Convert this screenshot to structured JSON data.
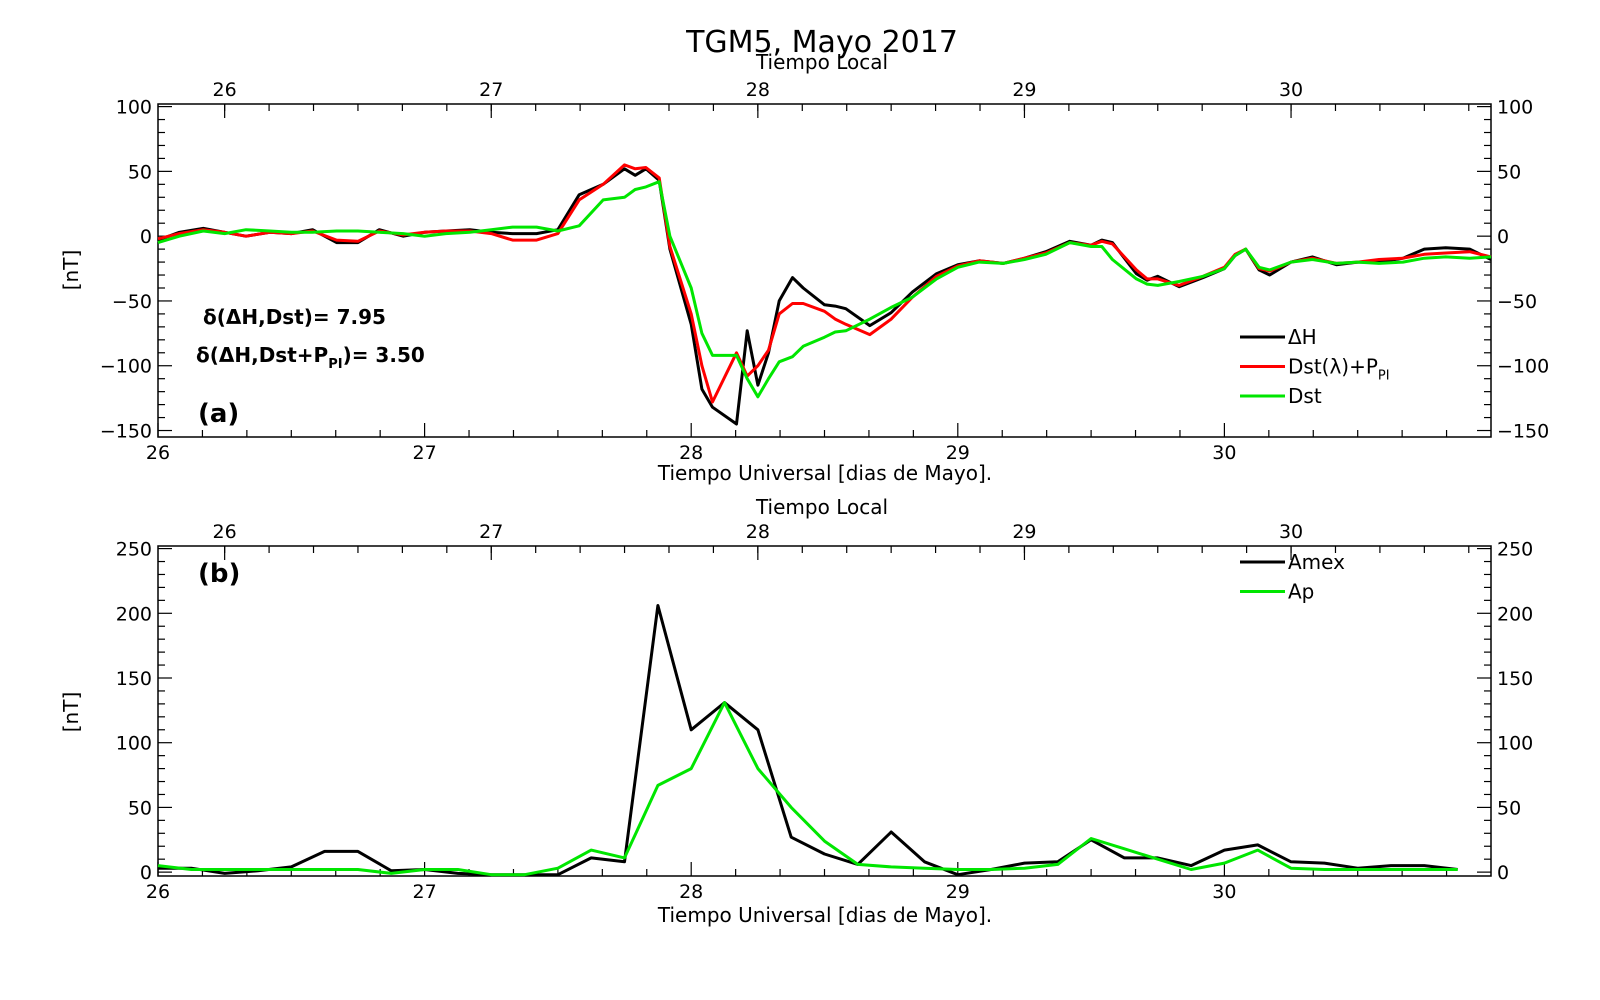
{
  "colors": {
    "dH": "#000000",
    "dst_ppi": "#ff0000",
    "dst": "#00e600",
    "amex": "#000000",
    "ap": "#00e600"
  },
  "header": {
    "title": "TGM5, Mayo 2017"
  },
  "stats": {
    "s1": "δ(ΔH,Dst)=  7.95",
    "s2_pre": "δ(ΔH,Dst+P",
    "s2_sub": "PI",
    "s2_post": ")=  3.50"
  },
  "chart_data": [
    {
      "type": "line",
      "panel_label": "(a)",
      "top_xlabel": "Tiempo Local",
      "xlabel": "Tiempo Universal [dias de Mayo].",
      "ylabel": "[nT]",
      "xlim": [
        26,
        31
      ],
      "ylim": [
        -155,
        102
      ],
      "top_tick_offset": -0.25,
      "x_ticks": [
        26,
        27,
        28,
        29,
        30
      ],
      "x_ticklabels": [
        "26",
        "27",
        "28",
        "29",
        "30"
      ],
      "top_ticklabels": [
        "26",
        "27",
        "28",
        "29",
        "30"
      ],
      "y_ticks": [
        -150,
        -100,
        -50,
        0,
        50,
        100
      ],
      "y_ticklabels": [
        "−150",
        "−100",
        "−50",
        "0",
        "50",
        "100"
      ],
      "right_ticklabels": [
        "−150",
        "−100",
        "−50",
        "0",
        "50",
        "100"
      ],
      "legend_position": "right",
      "series": [
        {
          "key": "dH",
          "name": "ΔH",
          "color": "#000000",
          "x": [
            26.0,
            26.08,
            26.17,
            26.25,
            26.33,
            26.42,
            26.5,
            26.58,
            26.67,
            26.75,
            26.83,
            26.92,
            27.0,
            27.08,
            27.17,
            27.25,
            27.33,
            27.42,
            27.5,
            27.58,
            27.67,
            27.75,
            27.79,
            27.83,
            27.88,
            27.92,
            28.0,
            28.04,
            28.08,
            28.17,
            28.21,
            28.25,
            28.29,
            28.33,
            28.38,
            28.42,
            28.5,
            28.54,
            28.58,
            28.67,
            28.75,
            28.83,
            28.92,
            29.0,
            29.08,
            29.17,
            29.25,
            29.33,
            29.42,
            29.5,
            29.54,
            29.58,
            29.67,
            29.71,
            29.75,
            29.83,
            29.92,
            30.0,
            30.04,
            30.08,
            30.13,
            30.17,
            30.25,
            30.33,
            30.42,
            30.5,
            30.58,
            30.67,
            30.75,
            30.83,
            30.92,
            31.0
          ],
          "y": [
            -3,
            3,
            6,
            3,
            0,
            3,
            2,
            5,
            -5,
            -5,
            5,
            0,
            3,
            4,
            5,
            3,
            2,
            2,
            5,
            32,
            40,
            52,
            47,
            52,
            43,
            -10,
            -68,
            -118,
            -132,
            -145,
            -73,
            -115,
            -90,
            -50,
            -32,
            -40,
            -53,
            -54,
            -56,
            -69,
            -59,
            -43,
            -29,
            -22,
            -19,
            -21,
            -17,
            -12,
            -4,
            -7,
            -3,
            -5,
            -29,
            -34,
            -31,
            -39,
            -32,
            -25,
            -15,
            -10,
            -26,
            -30,
            -20,
            -16,
            -22,
            -20,
            -20,
            -17,
            -10,
            -9,
            -10,
            -18
          ]
        },
        {
          "key": "dst_ppi",
          "name": "Dst(λ)+P",
          "sub": "PI",
          "color": "#ff0000",
          "x": [
            26.0,
            26.08,
            26.17,
            26.25,
            26.33,
            26.42,
            26.5,
            26.58,
            26.67,
            26.75,
            26.83,
            26.92,
            27.0,
            27.08,
            27.17,
            27.25,
            27.33,
            27.42,
            27.5,
            27.58,
            27.67,
            27.75,
            27.79,
            27.83,
            27.88,
            27.92,
            28.0,
            28.04,
            28.08,
            28.17,
            28.21,
            28.25,
            28.29,
            28.33,
            28.38,
            28.42,
            28.5,
            28.54,
            28.58,
            28.67,
            28.75,
            28.83,
            28.92,
            29.0,
            29.08,
            29.17,
            29.25,
            29.33,
            29.42,
            29.5,
            29.54,
            29.58,
            29.67,
            29.71,
            29.75,
            29.83,
            29.92,
            30.0,
            30.04,
            30.08,
            30.13,
            30.17,
            30.25,
            30.33,
            30.42,
            30.5,
            30.58,
            30.67,
            30.75,
            30.83,
            30.92,
            31.0
          ],
          "y": [
            -2,
            2,
            5,
            3,
            0,
            3,
            2,
            4,
            -3,
            -4,
            4,
            1,
            3,
            4,
            4,
            2,
            -3,
            -3,
            2,
            28,
            40,
            55,
            52,
            53,
            45,
            -8,
            -60,
            -100,
            -128,
            -90,
            -108,
            -100,
            -88,
            -60,
            -52,
            -52,
            -58,
            -64,
            -68,
            -76,
            -64,
            -47,
            -31,
            -23,
            -19,
            -21,
            -17,
            -13,
            -5,
            -7,
            -4,
            -6,
            -26,
            -33,
            -33,
            -38,
            -31,
            -24,
            -14,
            -10,
            -25,
            -27,
            -20,
            -17,
            -21,
            -20,
            -18,
            -17,
            -14,
            -13,
            -12,
            -16
          ]
        },
        {
          "key": "dst",
          "name": "Dst",
          "color": "#00e600",
          "x": [
            26.0,
            26.08,
            26.17,
            26.25,
            26.33,
            26.42,
            26.5,
            26.58,
            26.67,
            26.75,
            26.83,
            26.92,
            27.0,
            27.08,
            27.17,
            27.25,
            27.33,
            27.42,
            27.5,
            27.58,
            27.67,
            27.75,
            27.79,
            27.83,
            27.88,
            27.92,
            28.0,
            28.04,
            28.08,
            28.17,
            28.21,
            28.25,
            28.29,
            28.33,
            28.38,
            28.42,
            28.5,
            28.54,
            28.58,
            28.67,
            28.75,
            28.83,
            28.92,
            29.0,
            29.08,
            29.17,
            29.25,
            29.33,
            29.42,
            29.5,
            29.54,
            29.58,
            29.67,
            29.71,
            29.75,
            29.83,
            29.92,
            30.0,
            30.04,
            30.08,
            30.13,
            30.17,
            30.25,
            30.33,
            30.42,
            30.5,
            30.58,
            30.67,
            30.75,
            30.83,
            30.92,
            31.0
          ],
          "y": [
            -5,
            0,
            4,
            2,
            5,
            4,
            3,
            3,
            4,
            4,
            3,
            2,
            0,
            2,
            3,
            5,
            7,
            7,
            4,
            8,
            28,
            30,
            36,
            38,
            42,
            0,
            -40,
            -75,
            -92,
            -92,
            -110,
            -124,
            -110,
            -97,
            -93,
            -85,
            -78,
            -74,
            -73,
            -64,
            -55,
            -47,
            -33,
            -24,
            -20,
            -21,
            -18,
            -14,
            -5,
            -8,
            -8,
            -18,
            -33,
            -37,
            -38,
            -35,
            -31,
            -25,
            -15,
            -10,
            -24,
            -26,
            -20,
            -18,
            -21,
            -20,
            -21,
            -20,
            -17,
            -16,
            -17,
            -16
          ]
        }
      ]
    },
    {
      "type": "line",
      "panel_label": "(b)",
      "top_xlabel": "Tiempo Local",
      "xlabel": "Tiempo Universal [dias de Mayo].",
      "ylabel": "[nT]",
      "xlim": [
        26,
        31
      ],
      "ylim": [
        -3,
        252
      ],
      "top_tick_offset": -0.25,
      "x_ticks": [
        26,
        27,
        28,
        29,
        30
      ],
      "x_ticklabels": [
        "26",
        "27",
        "28",
        "29",
        "30"
      ],
      "top_ticklabels": [
        "26",
        "27",
        "28",
        "29",
        "30"
      ],
      "y_ticks": [
        0,
        50,
        100,
        150,
        200,
        250
      ],
      "y_ticklabels": [
        "0",
        "50",
        "100",
        "150",
        "200",
        "250"
      ],
      "right_ticklabels": [
        "0",
        "50",
        "100",
        "150",
        "200",
        "250"
      ],
      "legend_position": "top-right",
      "series": [
        {
          "key": "amex",
          "name": "Amex",
          "color": "#000000",
          "x": [
            26.0,
            26.125,
            26.25,
            26.375,
            26.5,
            26.625,
            26.75,
            26.875,
            27.0,
            27.125,
            27.25,
            27.375,
            27.5,
            27.625,
            27.75,
            27.875,
            28.0,
            28.125,
            28.25,
            28.375,
            28.5,
            28.625,
            28.75,
            28.875,
            29.0,
            29.125,
            29.25,
            29.375,
            29.5,
            29.625,
            29.75,
            29.875,
            30.0,
            30.125,
            30.25,
            30.375,
            30.5,
            30.625,
            30.75,
            30.875
          ],
          "y": [
            3,
            3,
            -1,
            1,
            4,
            16,
            16,
            1,
            2,
            -1,
            -2,
            -2,
            -2,
            11,
            8,
            206,
            110,
            131,
            110,
            27,
            14,
            6,
            31,
            8,
            -2,
            2,
            7,
            8,
            25,
            11,
            11,
            5,
            17,
            21,
            8,
            7,
            3,
            5,
            5,
            2
          ]
        },
        {
          "key": "ap",
          "name": "Ap",
          "color": "#00e600",
          "x": [
            26.0,
            26.125,
            26.25,
            26.375,
            26.5,
            26.625,
            26.75,
            26.875,
            27.0,
            27.125,
            27.25,
            27.375,
            27.5,
            27.625,
            27.75,
            27.875,
            28.0,
            28.125,
            28.25,
            28.375,
            28.5,
            28.625,
            28.75,
            28.875,
            29.0,
            29.125,
            29.25,
            29.375,
            29.5,
            29.625,
            29.75,
            29.875,
            30.0,
            30.125,
            30.25,
            30.375,
            30.5,
            30.625,
            30.75,
            30.875
          ],
          "y": [
            5,
            2,
            2,
            2,
            2,
            2,
            2,
            -1,
            2,
            2,
            -2,
            -2,
            3,
            17,
            11,
            67,
            80,
            131,
            80,
            50,
            24,
            6,
            4,
            3,
            2,
            2,
            3,
            6,
            26,
            18,
            10,
            2,
            7,
            17,
            3,
            2,
            2,
            2,
            2,
            2
          ]
        }
      ]
    }
  ]
}
